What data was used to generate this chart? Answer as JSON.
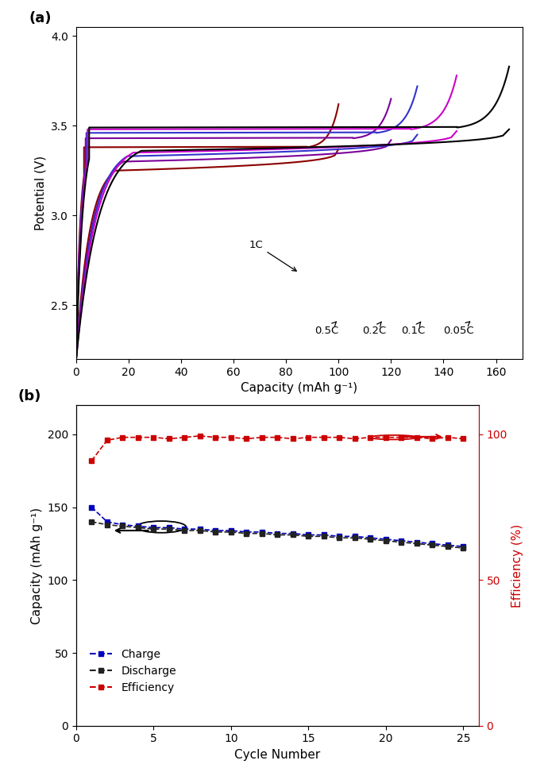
{
  "panel_a": {
    "xlabel": "Capacity (mAh g⁻¹)",
    "ylabel": "Potential (V)",
    "xlim": [
      0,
      170
    ],
    "ylim": [
      2.2,
      4.05
    ],
    "xticks": [
      0,
      20,
      40,
      60,
      80,
      100,
      120,
      140,
      160
    ],
    "yticks": [
      2.5,
      3.0,
      3.5,
      4.0
    ],
    "curves": [
      {
        "label": "1C",
        "color": "#8B0000",
        "cap_max": 100,
        "charge_plateau": 3.38,
        "charge_upper": 3.62,
        "discharge_plateau": 3.37,
        "discharge_lower": 2.2
      },
      {
        "label": "0.5C",
        "color": "#7B0099",
        "cap_max": 120,
        "charge_plateau": 3.43,
        "charge_upper": 3.65,
        "discharge_plateau": 3.42,
        "discharge_lower": 2.2
      },
      {
        "label": "0.2C",
        "color": "#3333CC",
        "cap_max": 130,
        "charge_plateau": 3.46,
        "charge_upper": 3.72,
        "discharge_plateau": 3.45,
        "discharge_lower": 2.2
      },
      {
        "label": "0.1C",
        "color": "#CC00CC",
        "cap_max": 145,
        "charge_plateau": 3.48,
        "charge_upper": 3.78,
        "discharge_plateau": 3.47,
        "discharge_lower": 2.2
      },
      {
        "label": "0.05C",
        "color": "#000000",
        "cap_max": 165,
        "charge_plateau": 3.49,
        "charge_upper": 3.83,
        "discharge_plateau": 3.48,
        "discharge_lower": 2.2
      }
    ]
  },
  "panel_b": {
    "xlabel": "Cycle Number",
    "ylabel_left": "Capacity (mAh g⁻¹)",
    "ylabel_right": "Efficiency (%)",
    "xlim": [
      0,
      26
    ],
    "ylim_left": [
      0,
      220
    ],
    "ylim_right": [
      0,
      110
    ],
    "xticks": [
      0,
      5,
      10,
      15,
      20,
      25
    ],
    "yticks_left": [
      0,
      50,
      100,
      150,
      200
    ],
    "yticks_right": [
      0,
      50,
      100
    ],
    "charge_cycles": [
      1,
      2,
      3,
      4,
      5,
      6,
      7,
      8,
      9,
      10,
      11,
      12,
      13,
      14,
      15,
      16,
      17,
      18,
      19,
      20,
      21,
      22,
      23,
      24,
      25
    ],
    "charge_capacity": [
      150,
      140,
      138,
      137,
      136,
      136,
      135,
      135,
      134,
      134,
      133,
      133,
      132,
      132,
      131,
      131,
      130,
      130,
      129,
      128,
      127,
      126,
      125,
      124,
      123
    ],
    "discharge_cycles": [
      1,
      2,
      3,
      4,
      5,
      6,
      7,
      8,
      9,
      10,
      11,
      12,
      13,
      14,
      15,
      16,
      17,
      18,
      19,
      20,
      21,
      22,
      23,
      24,
      25
    ],
    "discharge_capacity": [
      140,
      138,
      137,
      136,
      135,
      135,
      134,
      134,
      133,
      133,
      132,
      132,
      131,
      131,
      130,
      130,
      129,
      129,
      128,
      127,
      126,
      125,
      124,
      123,
      122
    ],
    "efficiency_cycles": [
      1,
      2,
      3,
      4,
      5,
      6,
      7,
      8,
      9,
      10,
      11,
      12,
      13,
      14,
      15,
      16,
      17,
      18,
      19,
      20,
      21,
      22,
      23,
      24,
      25
    ],
    "efficiency": [
      91,
      98,
      99,
      99,
      99,
      98.5,
      99,
      99.5,
      99,
      99,
      98.5,
      99,
      99,
      98.5,
      99,
      99,
      99,
      98.5,
      99,
      99,
      99,
      99,
      98.5,
      99,
      98.5
    ],
    "charge_color": "#0000BB",
    "discharge_color": "#222222",
    "efficiency_color": "#CC0000"
  }
}
